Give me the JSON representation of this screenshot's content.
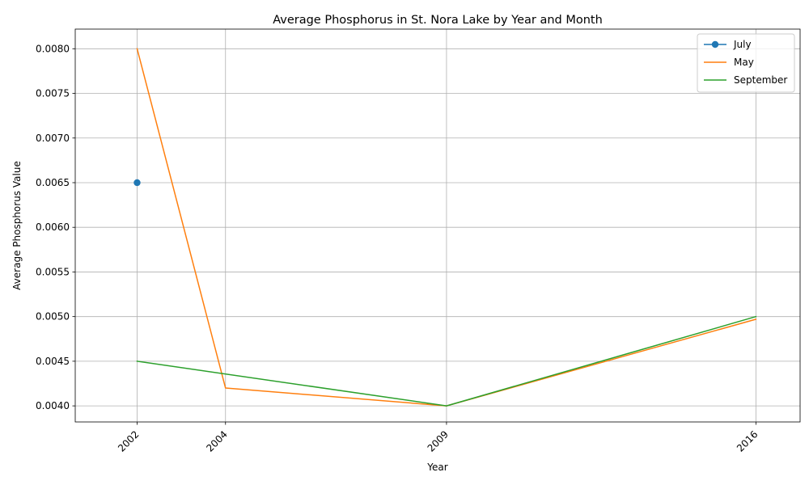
{
  "chart_data": {
    "type": "line",
    "title": "Average Phosphorus in St. Nora Lake by Year and Month",
    "xlabel": "Year",
    "ylabel": "Average Phosphorus Value",
    "xlim": [
      2000.6,
      2017.0
    ],
    "ylim": [
      0.00382,
      0.00822
    ],
    "x_ticks": [
      2002,
      2004,
      2009,
      2016
    ],
    "y_ticks": [
      "0.0040",
      "0.0045",
      "0.0050",
      "0.0055",
      "0.0060",
      "0.0065",
      "0.0070",
      "0.0075",
      "0.0080"
    ],
    "grid": true,
    "legend": "top-right",
    "series": [
      {
        "name": "July",
        "color": "#1f77b4",
        "marker": "circle",
        "x": [
          2002
        ],
        "y": [
          0.0065
        ]
      },
      {
        "name": "May",
        "color": "#ff7f0e",
        "marker": "none",
        "x": [
          2002,
          2004,
          2009,
          2016
        ],
        "y": [
          0.008,
          0.0042,
          0.004,
          0.00497
        ]
      },
      {
        "name": "September",
        "color": "#2ca02c",
        "marker": "none",
        "x": [
          2002,
          2009,
          2016
        ],
        "y": [
          0.0045,
          0.004,
          0.005
        ]
      }
    ]
  }
}
